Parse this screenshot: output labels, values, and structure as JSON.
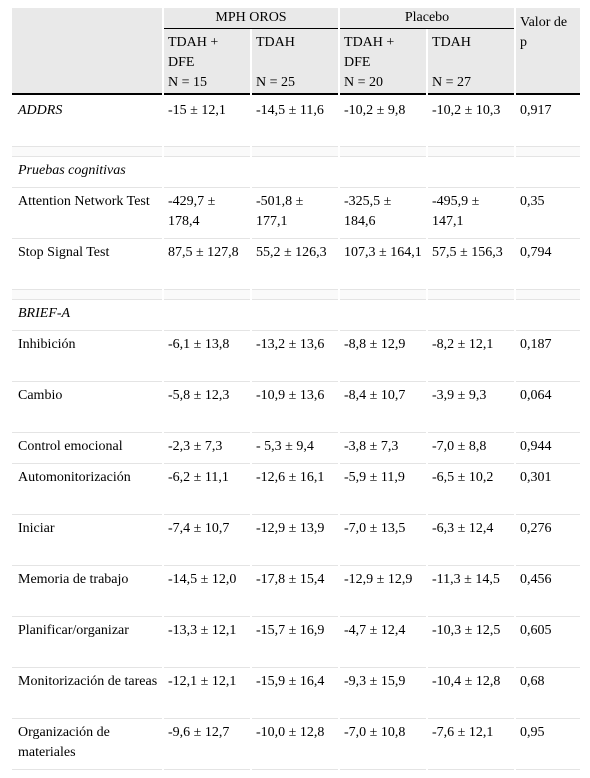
{
  "header": {
    "group_mph": "MPH OROS",
    "group_placebo": "Placebo",
    "cols": [
      {
        "label": "TDAH + DFE",
        "n": "N = 15"
      },
      {
        "label": "TDAH",
        "n": "N = 25"
      },
      {
        "label": "TDAH + DFE",
        "n": "N = 20"
      },
      {
        "label": "TDAH",
        "n": "N = 27"
      },
      {
        "label": "Valor de p",
        "n": ""
      }
    ]
  },
  "sections": {
    "addrs": {
      "label": "ADDRS",
      "values": [
        "-15 ± 12,1",
        "-14,5 ± 11,6",
        "-10,2 ± 9,8",
        "-10,2 ± 10,3",
        "0,917"
      ]
    },
    "cognitive": {
      "label": "Pruebas cognitivas",
      "rows": [
        {
          "label": "Attention Network Test",
          "values": [
            "-429,7 ± 178,4",
            "-501,8 ± 177,1",
            "-325,5 ± 184,6",
            "-495,9 ± 147,1",
            "0,35"
          ]
        },
        {
          "label": "Stop Signal Test",
          "values": [
            "87,5 ± 127,8",
            "55,2 ± 126,3",
            "107,3 ± 164,1",
            "57,5 ± 156,3",
            "0,794"
          ]
        }
      ]
    },
    "brief": {
      "label": "BRIEF-A",
      "rows": [
        {
          "label": "Inhibición",
          "values": [
            "-6,1 ± 13,8",
            "-13,2 ± 13,6",
            "-8,8 ± 12,9",
            "-8,2 ± 12,1",
            "0,187"
          ]
        },
        {
          "label": "Cambio",
          "values": [
            "-5,8 ± 12,3",
            "-10,9 ± 13,6",
            "-8,4 ± 10,7",
            "-3,9 ± 9,3",
            "0,064"
          ]
        },
        {
          "label": "Control emocional",
          "values": [
            "-2,3 ± 7,3",
            "- 5,3 ± 9,4",
            "-3,8 ± 7,3",
            "-7,0 ± 8,8",
            "0,944"
          ]
        },
        {
          "label": "Automonitorización",
          "values": [
            "-6,2 ± 11,1",
            "-12,6 ± 16,1",
            "-5,9 ± 11,9",
            "-6,5 ± 10,2",
            "0,301"
          ]
        },
        {
          "label": "Iniciar",
          "values": [
            "-7,4 ± 10,7",
            "-12,9 ± 13,9",
            "-7,0 ± 13,5",
            "-6,3 ± 12,4",
            "0,276"
          ]
        },
        {
          "label": "Memoria de trabajo",
          "values": [
            "-14,5 ± 12,0",
            "-17,8 ± 15,4",
            "-12,9 ± 12,9",
            "-11,3 ± 14,5",
            "0,456"
          ]
        },
        {
          "label": "Planificar/organizar",
          "values": [
            "-13,3 ± 12,1",
            "-15,7 ± 16,9",
            "-4,7 ± 12,4",
            "-10,3 ± 12,5",
            "0,605"
          ]
        },
        {
          "label": "Monitorización de tareas",
          "values": [
            "-12,1 ± 12,1",
            "-15,9 ± 16,4",
            "-9,3 ± 15,9",
            "-10,4 ± 12,8",
            "0,68"
          ]
        },
        {
          "label": "Organización de materiales",
          "values": [
            "-9,6 ± 12,7",
            "-10,0 ± 12,8",
            "-7,0 ± 10,8",
            "-7,6 ± 12,1",
            "0,95"
          ]
        }
      ]
    }
  }
}
